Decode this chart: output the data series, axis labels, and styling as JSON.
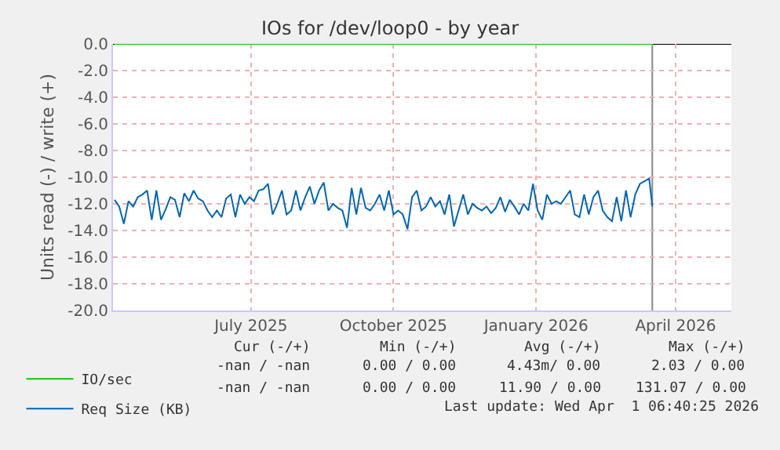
{
  "chart_data": {
    "type": "line",
    "title": "IOs for /dev/loop0 - by year",
    "ylabel": "Units read (-) / write (+)",
    "xlim": [
      "2025-04-18",
      "2026-05-22"
    ],
    "ylim": [
      -20,
      0
    ],
    "xticks": [
      {
        "value": "2025-07-16",
        "label": "July 2025"
      },
      {
        "value": "2025-10-16",
        "label": "October 2025"
      },
      {
        "value": "2026-01-16",
        "label": "January 2026"
      },
      {
        "value": "2026-04-16",
        "label": "April 2026"
      }
    ],
    "yticks": [
      {
        "value": 0,
        "label": "0.0"
      },
      {
        "value": -2,
        "label": "-2.0"
      },
      {
        "value": -4,
        "label": "-4.0"
      },
      {
        "value": -6,
        "label": "-6.0"
      },
      {
        "value": -8,
        "label": "-8.0"
      },
      {
        "value": -10,
        "label": "-10.0"
      },
      {
        "value": -12,
        "label": "-12.0"
      },
      {
        "value": -14,
        "label": "-14.0"
      },
      {
        "value": -16,
        "label": "-16.0"
      },
      {
        "value": -18,
        "label": "-18.0"
      },
      {
        "value": -20,
        "label": "-20.0"
      }
    ],
    "grid": true,
    "legend": "bottom left",
    "marker": "none",
    "line_style": "solid",
    "x": [
      "2025-04-19",
      "2025-04-22",
      "2025-04-25",
      "2025-04-28",
      "2025-05-01",
      "2025-05-04",
      "2025-05-07",
      "2025-05-10",
      "2025-05-13",
      "2025-05-16",
      "2025-05-19",
      "2025-05-22",
      "2025-05-25",
      "2025-05-28",
      "2025-05-31",
      "2025-06-03",
      "2025-06-06",
      "2025-06-09",
      "2025-06-12",
      "2025-06-15",
      "2025-06-18",
      "2025-06-21",
      "2025-06-24",
      "2025-06-27",
      "2025-06-30",
      "2025-07-03",
      "2025-07-06",
      "2025-07-09",
      "2025-07-12",
      "2025-07-15",
      "2025-07-18",
      "2025-07-21",
      "2025-07-24",
      "2025-07-27",
      "2025-07-30",
      "2025-08-02",
      "2025-08-05",
      "2025-08-08",
      "2025-08-11",
      "2025-08-14",
      "2025-08-17",
      "2025-08-20",
      "2025-08-23",
      "2025-08-26",
      "2025-08-29",
      "2025-09-01",
      "2025-09-04",
      "2025-09-07",
      "2025-09-10",
      "2025-09-13",
      "2025-09-16",
      "2025-09-19",
      "2025-09-22",
      "2025-09-25",
      "2025-09-28",
      "2025-10-01",
      "2025-10-04",
      "2025-10-07",
      "2025-10-10",
      "2025-10-13",
      "2025-10-16",
      "2025-10-19",
      "2025-10-22",
      "2025-10-25",
      "2025-10-28",
      "2025-10-31",
      "2025-11-03",
      "2025-11-06",
      "2025-11-09",
      "2025-11-12",
      "2025-11-15",
      "2025-11-18",
      "2025-11-21",
      "2025-11-24",
      "2025-11-27",
      "2025-11-30",
      "2025-12-03",
      "2025-12-06",
      "2025-12-09",
      "2025-12-12",
      "2025-12-15",
      "2025-12-18",
      "2025-12-21",
      "2025-12-24",
      "2025-12-27",
      "2025-12-30",
      "2026-01-02",
      "2026-01-05",
      "2026-01-08",
      "2026-01-11",
      "2026-01-14",
      "2026-01-17",
      "2026-01-20",
      "2026-01-23",
      "2026-01-26",
      "2026-01-29",
      "2026-02-01",
      "2026-02-04",
      "2026-02-07",
      "2026-02-10",
      "2026-02-13",
      "2026-02-16",
      "2026-02-19",
      "2026-02-22",
      "2026-02-25",
      "2026-02-28",
      "2026-03-03",
      "2026-03-06",
      "2026-03-09",
      "2026-03-12",
      "2026-03-15",
      "2026-03-18",
      "2026-03-21",
      "2026-03-24",
      "2026-03-27",
      "2026-03-30",
      "2026-04-01"
    ],
    "series": [
      {
        "name": "IO/sec",
        "color": "#00cc00",
        "x": [
          "2025-04-19",
          "2026-04-01"
        ],
        "values": [
          0,
          0
        ]
      },
      {
        "name": "Req Size (KB)",
        "color": "#0066b3",
        "values": [
          -11.7,
          -12.2,
          -13.5,
          -11.8,
          -12.2,
          -11.5,
          -11.3,
          -11.0,
          -13.2,
          -11.0,
          -13.2,
          -12.4,
          -11.5,
          -11.7,
          -13.0,
          -11.2,
          -11.8,
          -11.0,
          -11.6,
          -11.8,
          -12.5,
          -13.0,
          -12.5,
          -13.0,
          -11.6,
          -11.3,
          -13.0,
          -11.3,
          -12.0,
          -11.5,
          -11.8,
          -11.0,
          -10.9,
          -10.5,
          -12.8,
          -12.0,
          -11.0,
          -12.8,
          -12.5,
          -11.0,
          -12.5,
          -11.5,
          -10.7,
          -12.0,
          -11.0,
          -10.4,
          -12.5,
          -12.0,
          -12.3,
          -12.5,
          -13.8,
          -10.8,
          -12.8,
          -10.8,
          -12.3,
          -12.5,
          -12.0,
          -11.3,
          -12.5,
          -11.0,
          -12.8,
          -12.5,
          -12.8,
          -13.9,
          -11.5,
          -11.0,
          -12.5,
          -12.2,
          -11.5,
          -12.2,
          -11.8,
          -12.8,
          -11.3,
          -13.7,
          -12.5,
          -11.3,
          -12.8,
          -12.0,
          -12.3,
          -12.5,
          -12.2,
          -12.7,
          -12.3,
          -11.5,
          -12.6,
          -11.7,
          -12.2,
          -12.8,
          -12.0,
          -12.5,
          -10.5,
          -12.5,
          -13.2,
          -11.3,
          -12.0,
          -11.8,
          -12.0,
          -11.5,
          -11.0,
          -12.8,
          -13.0,
          -11.3,
          -12.8,
          -11.5,
          -11.0,
          -12.5,
          -13.0,
          -13.3,
          -11.5,
          -13.3,
          -11.0,
          -13.0,
          -11.3,
          -10.5,
          -10.3,
          -10.1,
          -12.2
        ]
      }
    ],
    "ref_lines": [
      {
        "axis": "y",
        "value": 0,
        "color": "#000000"
      },
      {
        "axis": "x",
        "value": "2026-04-01",
        "color": "#888888"
      }
    ],
    "annotations": [
      "Cur (-/+)",
      "Min (-/+)",
      "Avg (-/+)",
      "Max (-/+)",
      "-nan / -nan",
      "0.00 / 0.00",
      "4.43m/ 0.00",
      "2.03 / 0.00",
      "-nan / -nan",
      "0.00 / 0.00",
      "11.90 / 0.00",
      "131.07 / 0.00",
      "Last update: Wed Apr  1 06:40:25 2026"
    ]
  }
}
